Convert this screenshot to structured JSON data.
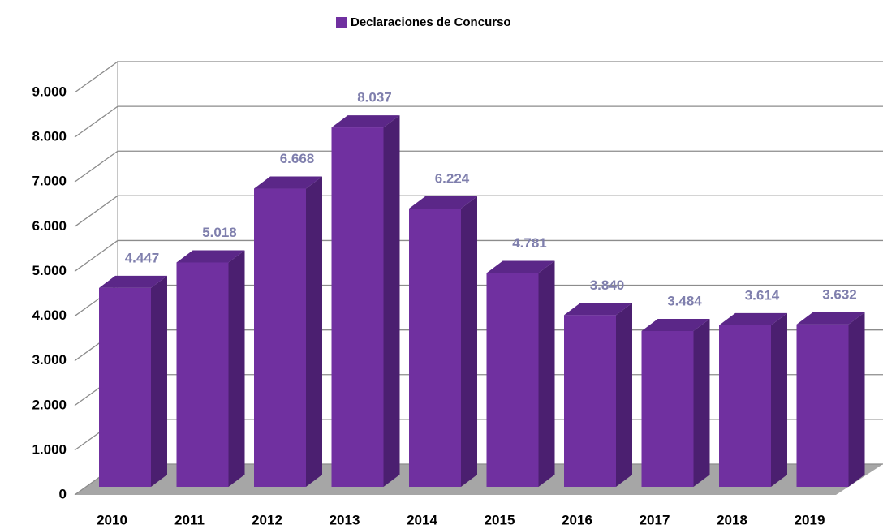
{
  "chart_data": {
    "type": "bar3d",
    "legend": "Declaraciones de Concurso",
    "categories": [
      "2010",
      "2011",
      "2012",
      "2013",
      "2014",
      "2015",
      "2016",
      "2017",
      "2018",
      "2019"
    ],
    "values": [
      4447,
      5018,
      6668,
      8037,
      6224,
      4781,
      3840,
      3484,
      3614,
      3632
    ],
    "value_labels": [
      "4.447",
      "5.018",
      "6.668",
      "8.037",
      "6.224",
      "4.781",
      "3.840",
      "3.484",
      "3.614",
      "3.632"
    ],
    "color": "#7030a0",
    "ylim": [
      0,
      9000
    ],
    "yticks": [
      {
        "value": 0,
        "label": "0"
      },
      {
        "value": 1000,
        "label": "1.000"
      },
      {
        "value": 2000,
        "label": "2.000"
      },
      {
        "value": 3000,
        "label": "3.000"
      },
      {
        "value": 4000,
        "label": "4.000"
      },
      {
        "value": 5000,
        "label": "5.000"
      },
      {
        "value": 6000,
        "label": "6.000"
      },
      {
        "value": 7000,
        "label": "7.000"
      },
      {
        "value": 8000,
        "label": "8.000"
      },
      {
        "value": 9000,
        "label": "9.000"
      }
    ],
    "grid": true
  }
}
